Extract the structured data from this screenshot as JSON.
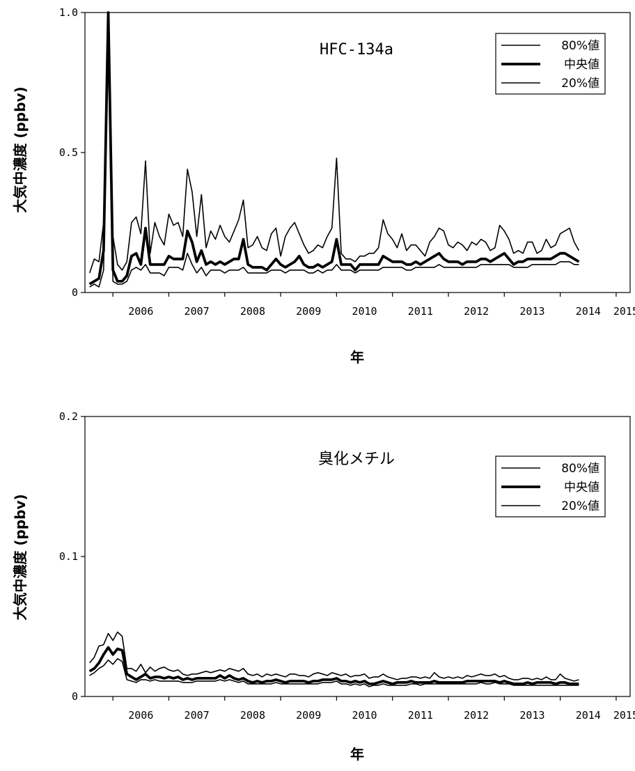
{
  "chart_data": [
    {
      "type": "line",
      "title": "HFC-134a",
      "ylabel": "大気中濃度 (ppbv)",
      "xlabel": "年",
      "ylim": [
        0,
        1.0
      ],
      "yticks": [
        "0",
        "0.5",
        "1.0"
      ],
      "ytick_values": [
        0,
        0.5,
        1.0
      ],
      "xticks": [
        "2006",
        "2007",
        "2008",
        "2009",
        "2010",
        "2011",
        "2012",
        "2013",
        "2014",
        "2015"
      ],
      "xlim": [
        "2005-07",
        "2015-04"
      ],
      "legend_position": "top-right",
      "series": [
        {
          "name": "80%値",
          "values": [
            0.07,
            0.12,
            0.11,
            0.25,
            1.0,
            0.2,
            0.1,
            0.08,
            0.11,
            0.25,
            0.27,
            0.21,
            0.47,
            0.14,
            0.25,
            0.2,
            0.17,
            0.28,
            0.24,
            0.25,
            0.2,
            0.44,
            0.36,
            0.2,
            0.35,
            0.16,
            0.22,
            0.19,
            0.24,
            0.2,
            0.18,
            0.22,
            0.26,
            0.33,
            0.16,
            0.17,
            0.2,
            0.16,
            0.15,
            0.21,
            0.23,
            0.13,
            0.2,
            0.23,
            0.25,
            0.21,
            0.17,
            0.14,
            0.15,
            0.17,
            0.16,
            0.2,
            0.23,
            0.48,
            0.14,
            0.12,
            0.12,
            0.11,
            0.13,
            0.13,
            0.14,
            0.14,
            0.16,
            0.26,
            0.21,
            0.19,
            0.16,
            0.21,
            0.15,
            0.17,
            0.17,
            0.15,
            0.13,
            0.18,
            0.2,
            0.23,
            0.22,
            0.17,
            0.16,
            0.18,
            0.17,
            0.15,
            0.18,
            0.17,
            0.19,
            0.18,
            0.15,
            0.16,
            0.24,
            0.22,
            0.19,
            0.14,
            0.15,
            0.14,
            0.18,
            0.18,
            0.14,
            0.15,
            0.19,
            0.16,
            0.17,
            0.21,
            0.22,
            0.23,
            0.18,
            0.15
          ]
        },
        {
          "name": "中央値",
          "values": [
            0.03,
            0.04,
            0.05,
            0.15,
            1.0,
            0.08,
            0.04,
            0.04,
            0.06,
            0.13,
            0.14,
            0.1,
            0.23,
            0.1,
            0.1,
            0.1,
            0.1,
            0.13,
            0.12,
            0.12,
            0.12,
            0.22,
            0.18,
            0.11,
            0.15,
            0.1,
            0.11,
            0.1,
            0.11,
            0.1,
            0.11,
            0.12,
            0.12,
            0.19,
            0.1,
            0.09,
            0.09,
            0.09,
            0.08,
            0.1,
            0.12,
            0.1,
            0.09,
            0.1,
            0.11,
            0.13,
            0.1,
            0.09,
            0.09,
            0.1,
            0.09,
            0.1,
            0.11,
            0.19,
            0.1,
            0.1,
            0.1,
            0.08,
            0.1,
            0.1,
            0.1,
            0.1,
            0.1,
            0.13,
            0.12,
            0.11,
            0.11,
            0.11,
            0.1,
            0.1,
            0.11,
            0.1,
            0.11,
            0.12,
            0.13,
            0.14,
            0.12,
            0.11,
            0.11,
            0.11,
            0.1,
            0.11,
            0.11,
            0.11,
            0.12,
            0.12,
            0.11,
            0.12,
            0.13,
            0.14,
            0.12,
            0.1,
            0.11,
            0.11,
            0.12,
            0.12,
            0.12,
            0.12,
            0.12,
            0.12,
            0.13,
            0.14,
            0.14,
            0.13,
            0.12,
            0.11
          ]
        },
        {
          "name": "20%値",
          "values": [
            0.02,
            0.03,
            0.02,
            0.08,
            1.0,
            0.04,
            0.03,
            0.03,
            0.04,
            0.08,
            0.09,
            0.08,
            0.1,
            0.07,
            0.07,
            0.07,
            0.06,
            0.09,
            0.09,
            0.09,
            0.08,
            0.14,
            0.1,
            0.07,
            0.09,
            0.06,
            0.08,
            0.08,
            0.08,
            0.07,
            0.08,
            0.08,
            0.08,
            0.09,
            0.07,
            0.07,
            0.07,
            0.07,
            0.07,
            0.08,
            0.08,
            0.08,
            0.07,
            0.08,
            0.08,
            0.08,
            0.08,
            0.07,
            0.07,
            0.08,
            0.07,
            0.08,
            0.08,
            0.1,
            0.08,
            0.08,
            0.08,
            0.07,
            0.08,
            0.08,
            0.08,
            0.08,
            0.08,
            0.09,
            0.09,
            0.09,
            0.09,
            0.09,
            0.08,
            0.08,
            0.09,
            0.09,
            0.09,
            0.09,
            0.09,
            0.1,
            0.09,
            0.09,
            0.09,
            0.09,
            0.09,
            0.09,
            0.09,
            0.09,
            0.1,
            0.1,
            0.1,
            0.1,
            0.1,
            0.1,
            0.1,
            0.09,
            0.09,
            0.09,
            0.09,
            0.1,
            0.1,
            0.1,
            0.1,
            0.1,
            0.1,
            0.11,
            0.11,
            0.11,
            0.1,
            0.1
          ]
        }
      ]
    },
    {
      "type": "line",
      "title": "臭化メチル",
      "ylabel": "大気中濃度 (ppbv)",
      "xlabel": "年",
      "ylim": [
        0,
        0.2
      ],
      "yticks": [
        "0",
        "0.1",
        "0.2"
      ],
      "ytick_values": [
        0,
        0.1,
        0.2
      ],
      "xticks": [
        "2006",
        "2007",
        "2008",
        "2009",
        "2010",
        "2011",
        "2012",
        "2013",
        "2014",
        "2015"
      ],
      "xlim": [
        "2005-07",
        "2015-04"
      ],
      "legend_position": "top-right",
      "series": [
        {
          "name": "80%値",
          "values": [
            0.024,
            0.028,
            0.036,
            0.037,
            0.045,
            0.04,
            0.046,
            0.043,
            0.02,
            0.02,
            0.018,
            0.023,
            0.017,
            0.021,
            0.018,
            0.02,
            0.021,
            0.019,
            0.018,
            0.019,
            0.016,
            0.015,
            0.016,
            0.016,
            0.017,
            0.018,
            0.017,
            0.018,
            0.019,
            0.018,
            0.02,
            0.019,
            0.018,
            0.02,
            0.016,
            0.015,
            0.016,
            0.014,
            0.016,
            0.015,
            0.016,
            0.015,
            0.014,
            0.016,
            0.016,
            0.015,
            0.015,
            0.014,
            0.016,
            0.017,
            0.016,
            0.015,
            0.017,
            0.016,
            0.015,
            0.016,
            0.014,
            0.015,
            0.015,
            0.016,
            0.013,
            0.014,
            0.014,
            0.016,
            0.014,
            0.013,
            0.012,
            0.013,
            0.013,
            0.014,
            0.014,
            0.013,
            0.014,
            0.013,
            0.017,
            0.014,
            0.013,
            0.014,
            0.013,
            0.014,
            0.013,
            0.015,
            0.014,
            0.015,
            0.016,
            0.015,
            0.015,
            0.016,
            0.014,
            0.015,
            0.013,
            0.012,
            0.012,
            0.013,
            0.013,
            0.012,
            0.013,
            0.012,
            0.014,
            0.012,
            0.012,
            0.016,
            0.013,
            0.012,
            0.011,
            0.012
          ]
        },
        {
          "name": "中央値",
          "values": [
            0.018,
            0.02,
            0.024,
            0.03,
            0.035,
            0.03,
            0.034,
            0.033,
            0.016,
            0.014,
            0.012,
            0.014,
            0.016,
            0.013,
            0.014,
            0.014,
            0.013,
            0.014,
            0.013,
            0.014,
            0.012,
            0.013,
            0.012,
            0.013,
            0.013,
            0.013,
            0.013,
            0.013,
            0.015,
            0.013,
            0.015,
            0.013,
            0.012,
            0.013,
            0.011,
            0.01,
            0.011,
            0.01,
            0.011,
            0.011,
            0.012,
            0.011,
            0.01,
            0.011,
            0.011,
            0.011,
            0.011,
            0.01,
            0.011,
            0.011,
            0.012,
            0.012,
            0.012,
            0.013,
            0.011,
            0.011,
            0.01,
            0.011,
            0.01,
            0.011,
            0.009,
            0.009,
            0.01,
            0.011,
            0.01,
            0.009,
            0.01,
            0.01,
            0.01,
            0.011,
            0.01,
            0.01,
            0.01,
            0.01,
            0.011,
            0.01,
            0.01,
            0.01,
            0.01,
            0.01,
            0.01,
            0.011,
            0.011,
            0.011,
            0.011,
            0.011,
            0.011,
            0.011,
            0.01,
            0.011,
            0.01,
            0.009,
            0.009,
            0.009,
            0.01,
            0.009,
            0.01,
            0.01,
            0.01,
            0.01,
            0.009,
            0.01,
            0.01,
            0.009,
            0.009,
            0.009
          ]
        },
        {
          "name": "20%値",
          "values": [
            0.015,
            0.017,
            0.02,
            0.022,
            0.026,
            0.023,
            0.027,
            0.025,
            0.012,
            0.011,
            0.01,
            0.012,
            0.012,
            0.011,
            0.012,
            0.011,
            0.011,
            0.011,
            0.011,
            0.011,
            0.01,
            0.01,
            0.01,
            0.011,
            0.011,
            0.011,
            0.011,
            0.011,
            0.012,
            0.011,
            0.012,
            0.011,
            0.01,
            0.011,
            0.009,
            0.009,
            0.009,
            0.009,
            0.009,
            0.009,
            0.01,
            0.009,
            0.009,
            0.009,
            0.009,
            0.009,
            0.009,
            0.009,
            0.009,
            0.009,
            0.01,
            0.01,
            0.01,
            0.011,
            0.009,
            0.009,
            0.008,
            0.009,
            0.008,
            0.009,
            0.007,
            0.008,
            0.008,
            0.009,
            0.008,
            0.008,
            0.008,
            0.008,
            0.008,
            0.009,
            0.009,
            0.008,
            0.009,
            0.009,
            0.009,
            0.009,
            0.009,
            0.009,
            0.009,
            0.009,
            0.009,
            0.009,
            0.009,
            0.009,
            0.01,
            0.009,
            0.009,
            0.01,
            0.009,
            0.009,
            0.009,
            0.008,
            0.008,
            0.008,
            0.008,
            0.008,
            0.008,
            0.008,
            0.008,
            0.008,
            0.008,
            0.008,
            0.008,
            0.008,
            0.008,
            0.008
          ]
        }
      ]
    }
  ]
}
